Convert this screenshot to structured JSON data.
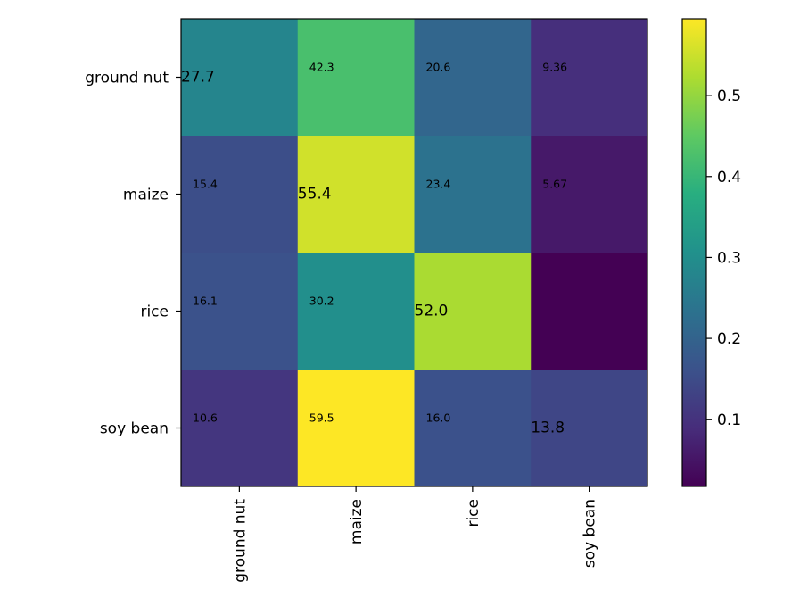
{
  "chart_data": {
    "type": "heatmap",
    "title": "",
    "xlabel": "",
    "ylabel": "",
    "rows": [
      "ground nut",
      "maize",
      "rice",
      "soy bean"
    ],
    "cols": [
      "ground nut",
      "maize",
      "rice",
      "soy bean"
    ],
    "values": [
      [
        0.277,
        0.423,
        0.206,
        0.0936
      ],
      [
        0.154,
        0.554,
        0.234,
        0.0567
      ],
      [
        0.161,
        0.302,
        0.52,
        0.017
      ],
      [
        0.106,
        0.595,
        0.16,
        0.138
      ]
    ],
    "labels": [
      [
        "27.7",
        "42.3",
        "20.6",
        "9.36"
      ],
      [
        "15.4",
        "55.4",
        "23.4",
        "5.67"
      ],
      [
        "16.1",
        "30.2",
        "52.0",
        ""
      ],
      [
        "10.6",
        "59.5",
        "16.0",
        "13.8"
      ]
    ],
    "colorbar": {
      "colormap": "viridis",
      "range": [
        0.017,
        0.595
      ],
      "ticks": [
        0.1,
        0.2,
        0.3,
        0.4,
        0.5
      ],
      "tick_labels": [
        "0.1",
        "0.2",
        "0.3",
        "0.4",
        "0.5"
      ]
    }
  }
}
